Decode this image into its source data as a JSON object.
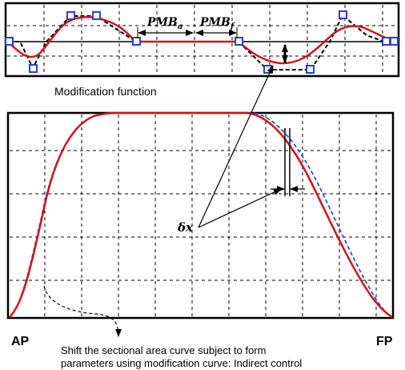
{
  "labels": {
    "modification_function": "Modification function",
    "pmb_a": "PMB",
    "pmb_a_sub": "a",
    "pmb_f": "PMB",
    "pmb_f_sub": "f",
    "delta_x": "δx",
    "ap": "AP",
    "fp": "FP",
    "caption_line1": "Shift the sectional area curve subject to form",
    "caption_line2": "parameters using modification curve: Indirect control"
  },
  "colors": {
    "red_curve": "#d0141c",
    "blue_dashed": "#1f3fd6",
    "control_point": "#2a3fd0",
    "frame": "#000000",
    "grid": "#000000"
  }
}
